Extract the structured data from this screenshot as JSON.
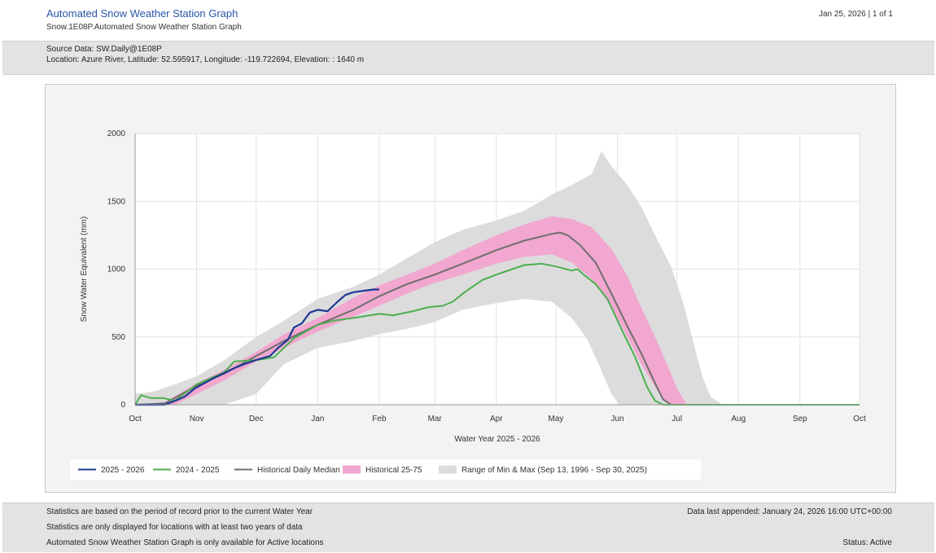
{
  "header": {
    "title": "Automated Snow Weather Station Graph",
    "subtitle": "Snow.1E08P.Automated Snow Weather Station Graph",
    "date_page": "Jan 25, 2026 | 1 of 1"
  },
  "source": {
    "line1": "Source Data: SW.Daily@1E08P",
    "line2": "Location: Azure River, Latitude: 52.595917, Longitude: -119.722694, Elevation: : 1640 m"
  },
  "footer": {
    "note1": "Statistics are based on the period of record prior to the current Water Year",
    "note2": "Statistics are only displayed for locations with at least two years of data",
    "note3": "Automated Snow Weather Station Graph is only available for Active locations",
    "appended": "Data last appended: January 24, 2026 16:00 UTC+00:00",
    "status": "Status: Active"
  },
  "chart_data": {
    "type": "line",
    "xlabel": "Water Year 2025 - 2026",
    "ylabel": "Snow Water Equivalent (mm)",
    "ylim": [
      0,
      2000
    ],
    "yticks": [
      0,
      500,
      1000,
      1500,
      2000
    ],
    "xlim_days": [
      0,
      365
    ],
    "xticks": [
      {
        "label": "Oct",
        "day": 0
      },
      {
        "label": "Nov",
        "day": 31
      },
      {
        "label": "Dec",
        "day": 61
      },
      {
        "label": "Jan",
        "day": 92
      },
      {
        "label": "Feb",
        "day": 123
      },
      {
        "label": "Mar",
        "day": 151
      },
      {
        "label": "Apr",
        "day": 182
      },
      {
        "label": "May",
        "day": 212
      },
      {
        "label": "Jun",
        "day": 243
      },
      {
        "label": "Jul",
        "day": 273
      },
      {
        "label": "Aug",
        "day": 304
      },
      {
        "label": "Sep",
        "day": 335
      },
      {
        "label": "Oct",
        "day": 365
      }
    ],
    "grid": true,
    "legend": [
      {
        "label": "2025 - 2026",
        "kind": "line",
        "color": "#1f3a93"
      },
      {
        "label": "2024 - 2025",
        "kind": "line",
        "color": "#4caf50"
      },
      {
        "label": "Historical Daily Median",
        "kind": "line",
        "color": "#6e6e6e"
      },
      {
        "label": "Historical 25-75",
        "kind": "box",
        "color": "#f1a7cf"
      },
      {
        "label": "Range of Min & Max (Sep 13, 1996 - Sep 30, 2025)",
        "kind": "box",
        "color": "#dcdcdc"
      }
    ],
    "bands": [
      {
        "name": "Range of Min & Max",
        "color": "#dcdcdc",
        "upper": [
          [
            0,
            80
          ],
          [
            10,
            100
          ],
          [
            20,
            150
          ],
          [
            31,
            210
          ],
          [
            45,
            330
          ],
          [
            61,
            500
          ],
          [
            75,
            620
          ],
          [
            92,
            780
          ],
          [
            110,
            870
          ],
          [
            123,
            960
          ],
          [
            137,
            1080
          ],
          [
            151,
            1200
          ],
          [
            165,
            1290
          ],
          [
            182,
            1360
          ],
          [
            196,
            1430
          ],
          [
            210,
            1550
          ],
          [
            220,
            1620
          ],
          [
            230,
            1700
          ],
          [
            235,
            1870
          ],
          [
            240,
            1760
          ],
          [
            248,
            1620
          ],
          [
            255,
            1460
          ],
          [
            262,
            1250
          ],
          [
            270,
            1020
          ],
          [
            276,
            760
          ],
          [
            282,
            420
          ],
          [
            286,
            200
          ],
          [
            290,
            60
          ],
          [
            296,
            0
          ],
          [
            365,
            0
          ]
        ],
        "lower": [
          [
            0,
            0
          ],
          [
            20,
            0
          ],
          [
            45,
            0
          ],
          [
            61,
            80
          ],
          [
            75,
            300
          ],
          [
            92,
            420
          ],
          [
            110,
            470
          ],
          [
            123,
            520
          ],
          [
            137,
            560
          ],
          [
            151,
            610
          ],
          [
            165,
            700
          ],
          [
            182,
            750
          ],
          [
            196,
            780
          ],
          [
            210,
            760
          ],
          [
            220,
            640
          ],
          [
            228,
            480
          ],
          [
            235,
            250
          ],
          [
            240,
            80
          ],
          [
            244,
            0
          ],
          [
            365,
            0
          ]
        ]
      },
      {
        "name": "Historical 25-75",
        "color": "#f1a7cf",
        "upper": [
          [
            0,
            0
          ],
          [
            15,
            20
          ],
          [
            31,
            160
          ],
          [
            45,
            260
          ],
          [
            61,
            390
          ],
          [
            75,
            520
          ],
          [
            92,
            640
          ],
          [
            110,
            790
          ],
          [
            123,
            880
          ],
          [
            137,
            960
          ],
          [
            151,
            1040
          ],
          [
            165,
            1140
          ],
          [
            182,
            1250
          ],
          [
            196,
            1330
          ],
          [
            210,
            1390
          ],
          [
            220,
            1370
          ],
          [
            230,
            1310
          ],
          [
            240,
            1150
          ],
          [
            248,
            950
          ],
          [
            255,
            720
          ],
          [
            262,
            500
          ],
          [
            268,
            300
          ],
          [
            273,
            120
          ],
          [
            278,
            0
          ],
          [
            365,
            0
          ]
        ],
        "lower": [
          [
            0,
            0
          ],
          [
            20,
            0
          ],
          [
            31,
            80
          ],
          [
            45,
            180
          ],
          [
            61,
            320
          ],
          [
            75,
            420
          ],
          [
            92,
            540
          ],
          [
            110,
            650
          ],
          [
            123,
            730
          ],
          [
            137,
            820
          ],
          [
            151,
            900
          ],
          [
            165,
            960
          ],
          [
            182,
            1040
          ],
          [
            196,
            1090
          ],
          [
            210,
            1110
          ],
          [
            220,
            1050
          ],
          [
            230,
            930
          ],
          [
            240,
            720
          ],
          [
            248,
            500
          ],
          [
            255,
            300
          ],
          [
            262,
            130
          ],
          [
            266,
            40
          ],
          [
            270,
            0
          ],
          [
            365,
            0
          ]
        ]
      }
    ],
    "series": [
      {
        "name": "Historical Daily Median",
        "color": "#6e6e6e",
        "width": 2,
        "points": [
          [
            0,
            0
          ],
          [
            15,
            10
          ],
          [
            31,
            140
          ],
          [
            45,
            230
          ],
          [
            61,
            360
          ],
          [
            75,
            470
          ],
          [
            92,
            590
          ],
          [
            110,
            700
          ],
          [
            123,
            800
          ],
          [
            137,
            890
          ],
          [
            151,
            960
          ],
          [
            165,
            1040
          ],
          [
            182,
            1140
          ],
          [
            196,
            1210
          ],
          [
            210,
            1260
          ],
          [
            214,
            1270
          ],
          [
            218,
            1250
          ],
          [
            224,
            1180
          ],
          [
            232,
            1050
          ],
          [
            240,
            820
          ],
          [
            248,
            580
          ],
          [
            255,
            380
          ],
          [
            262,
            160
          ],
          [
            266,
            40
          ],
          [
            270,
            0
          ],
          [
            365,
            0
          ]
        ]
      },
      {
        "name": "2024 - 2025",
        "color": "#4caf50",
        "width": 2,
        "points": [
          [
            0,
            0
          ],
          [
            3,
            70
          ],
          [
            8,
            50
          ],
          [
            14,
            50
          ],
          [
            20,
            30
          ],
          [
            31,
            150
          ],
          [
            45,
            240
          ],
          [
            50,
            320
          ],
          [
            61,
            330
          ],
          [
            70,
            350
          ],
          [
            80,
            490
          ],
          [
            92,
            590
          ],
          [
            100,
            620
          ],
          [
            110,
            640
          ],
          [
            123,
            670
          ],
          [
            130,
            660
          ],
          [
            140,
            690
          ],
          [
            148,
            720
          ],
          [
            155,
            730
          ],
          [
            160,
            760
          ],
          [
            166,
            830
          ],
          [
            175,
            920
          ],
          [
            182,
            960
          ],
          [
            190,
            1000
          ],
          [
            196,
            1030
          ],
          [
            205,
            1040
          ],
          [
            212,
            1020
          ],
          [
            220,
            990
          ],
          [
            223,
            1000
          ],
          [
            226,
            960
          ],
          [
            232,
            890
          ],
          [
            238,
            780
          ],
          [
            245,
            560
          ],
          [
            252,
            350
          ],
          [
            258,
            130
          ],
          [
            262,
            30
          ],
          [
            266,
            0
          ],
          [
            365,
            0
          ]
        ]
      },
      {
        "name": "2025 - 2026",
        "color": "#1f3a93",
        "width": 2.2,
        "points": [
          [
            0,
            0
          ],
          [
            15,
            0
          ],
          [
            22,
            40
          ],
          [
            25,
            60
          ],
          [
            30,
            120
          ],
          [
            40,
            200
          ],
          [
            50,
            270
          ],
          [
            55,
            300
          ],
          [
            61,
            330
          ],
          [
            68,
            360
          ],
          [
            72,
            420
          ],
          [
            77,
            480
          ],
          [
            80,
            570
          ],
          [
            84,
            600
          ],
          [
            88,
            680
          ],
          [
            92,
            700
          ],
          [
            97,
            690
          ],
          [
            102,
            760
          ],
          [
            106,
            810
          ],
          [
            110,
            830
          ],
          [
            115,
            840
          ],
          [
            120,
            850
          ],
          [
            123,
            850
          ]
        ]
      }
    ]
  }
}
